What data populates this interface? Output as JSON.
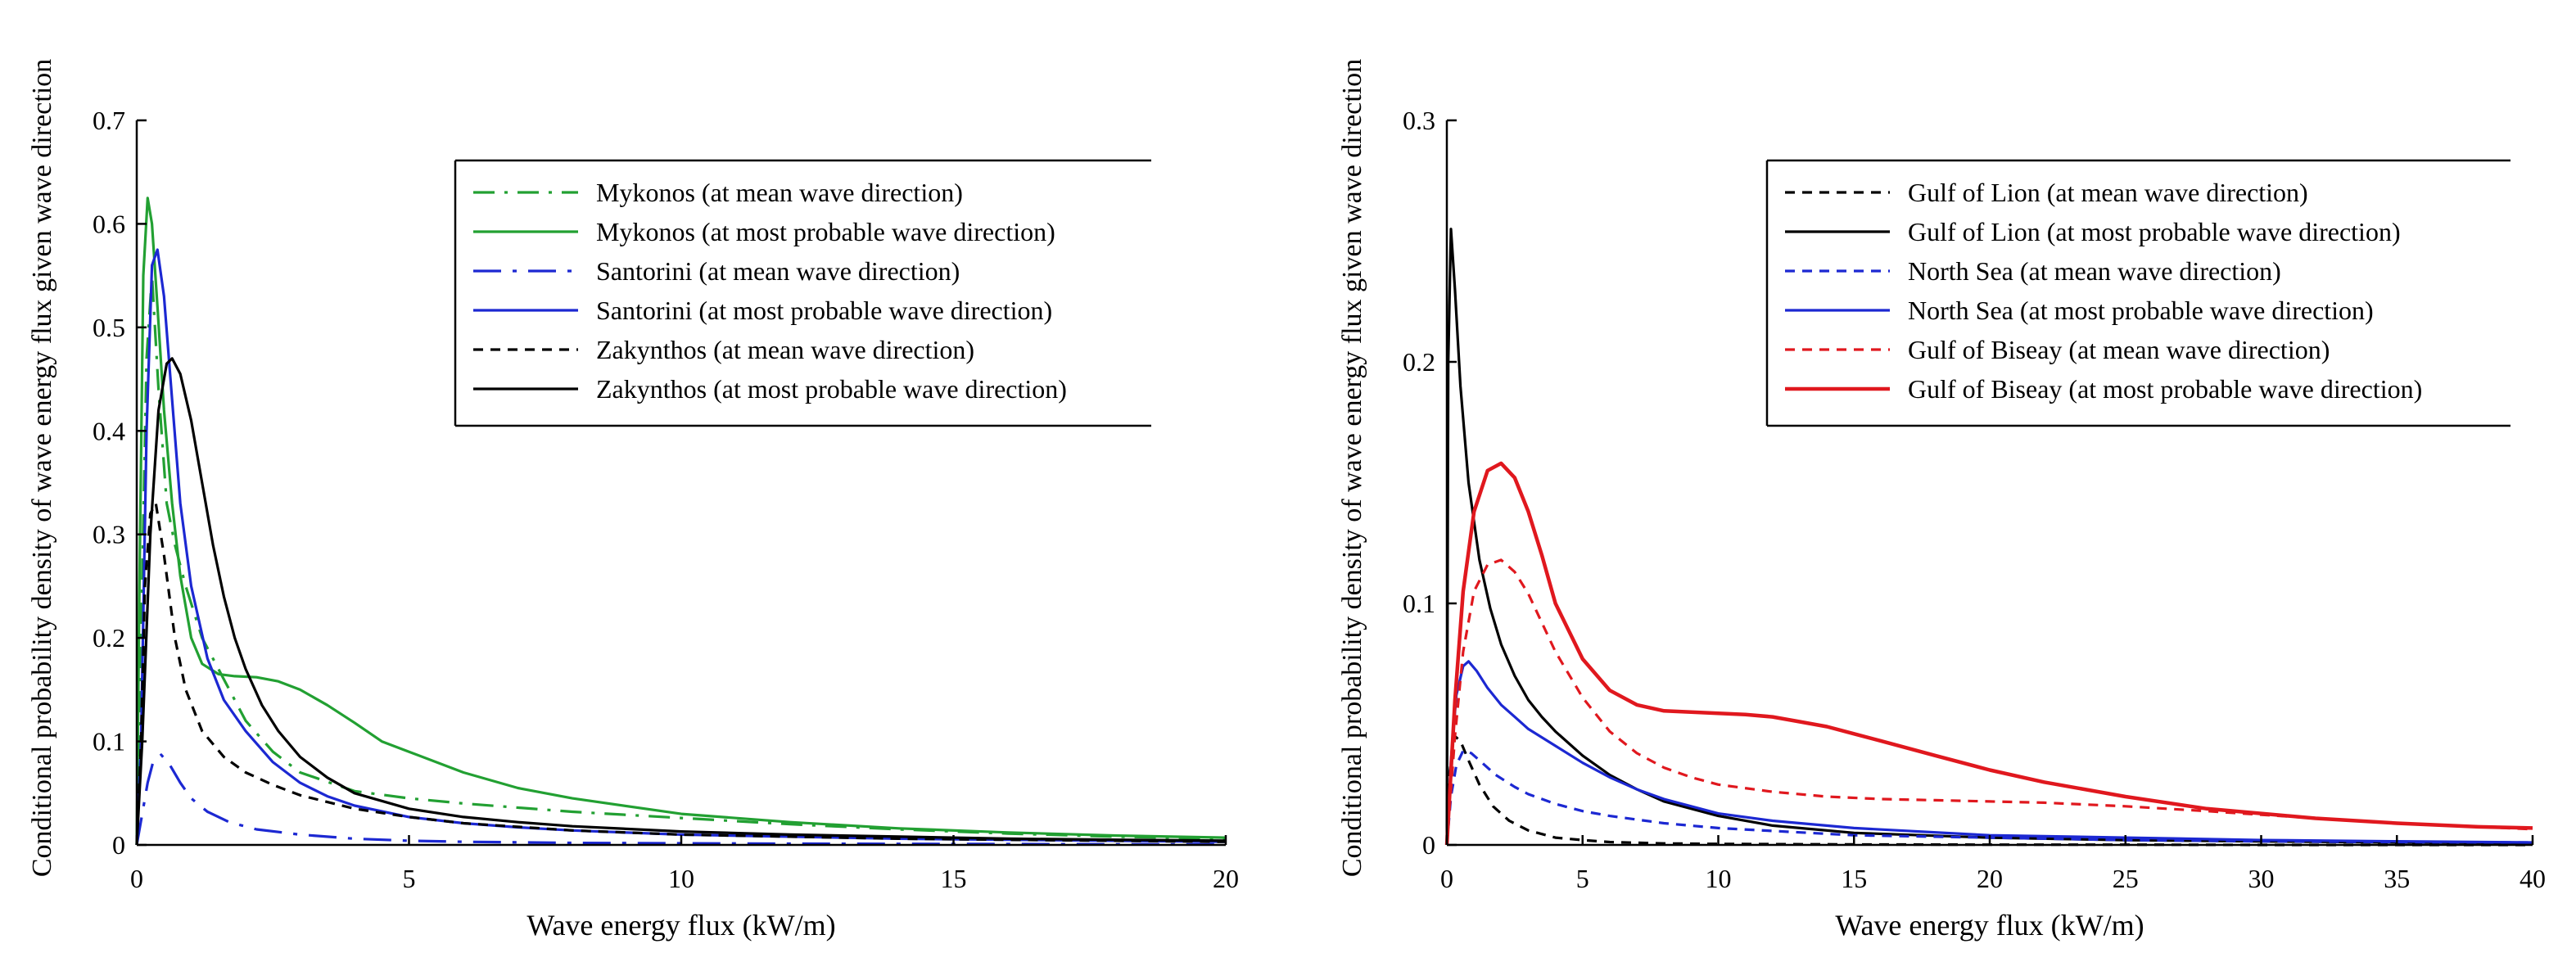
{
  "chart_data": [
    {
      "type": "line",
      "xlabel": "Wave energy flux (kW/m)",
      "ylabel": "Conditional probability density of wave energy flux given wave direction",
      "xlim": [
        0,
        20
      ],
      "ylim": [
        0,
        0.7
      ],
      "xticks": [
        0,
        5,
        10,
        15,
        20
      ],
      "xtick_labels": [
        "0",
        "5",
        "10",
        "15",
        "20"
      ],
      "yticks": [
        0,
        0.1,
        0.2,
        0.3,
        0.4,
        0.5,
        0.6,
        0.7
      ],
      "ytick_labels": [
        "0",
        "0.1",
        "0.2",
        "0.3",
        "0.4",
        "0.5",
        "0.6",
        "0.7"
      ],
      "grid": false,
      "legend_position": "top-right",
      "series": [
        {
          "name": "Mykonos (at mean wave direction)",
          "color": "#22a032",
          "dash": "dash-dot",
          "width": 3.2,
          "x": [
            0,
            0.08,
            0.18,
            0.28,
            0.4,
            0.55,
            0.7,
            0.9,
            1.2,
            1.6,
            2,
            2.5,
            3,
            4,
            5,
            6,
            8,
            10,
            12,
            14,
            16,
            18,
            20
          ],
          "y": [
            0,
            0.2,
            0.47,
            0.55,
            0.44,
            0.33,
            0.29,
            0.25,
            0.2,
            0.16,
            0.12,
            0.09,
            0.07,
            0.052,
            0.045,
            0.04,
            0.032,
            0.026,
            0.02,
            0.015,
            0.011,
            0.008,
            0.006
          ]
        },
        {
          "name": "Mykonos (at most probable wave direction)",
          "color": "#22a032",
          "dash": "solid",
          "width": 3.2,
          "x": [
            0,
            0.05,
            0.12,
            0.2,
            0.28,
            0.38,
            0.5,
            0.65,
            0.8,
            1,
            1.2,
            1.5,
            1.8,
            2.2,
            2.6,
            3,
            3.5,
            4,
            4.5,
            5,
            6,
            7,
            8,
            10,
            12,
            14,
            16,
            18,
            20
          ],
          "y": [
            0,
            0.25,
            0.55,
            0.625,
            0.6,
            0.52,
            0.42,
            0.33,
            0.26,
            0.2,
            0.175,
            0.165,
            0.163,
            0.162,
            0.158,
            0.15,
            0.135,
            0.118,
            0.1,
            0.09,
            0.07,
            0.055,
            0.045,
            0.03,
            0.022,
            0.016,
            0.012,
            0.009,
            0.007
          ]
        },
        {
          "name": "Santorini (at mean wave direction)",
          "color": "#1c28d2",
          "dash": "long-dash-dot",
          "width": 3.2,
          "x": [
            0,
            0.1,
            0.2,
            0.3,
            0.45,
            0.6,
            0.8,
            1,
            1.3,
            1.7,
            2.2,
            3,
            4,
            5,
            6,
            8,
            10,
            12,
            14,
            16,
            18,
            20
          ],
          "y": [
            0,
            0.03,
            0.06,
            0.08,
            0.087,
            0.078,
            0.06,
            0.045,
            0.032,
            0.022,
            0.015,
            0.01,
            0.006,
            0.004,
            0.003,
            0.002,
            0.0016,
            0.0012,
            0.001,
            0.0008,
            0.0006,
            0.0005
          ]
        },
        {
          "name": "Santorini (at most probable wave direction)",
          "color": "#1c28d2",
          "dash": "solid",
          "width": 3.2,
          "x": [
            0,
            0.08,
            0.18,
            0.28,
            0.38,
            0.5,
            0.65,
            0.8,
            1,
            1.3,
            1.6,
            2,
            2.5,
            3,
            3.5,
            4,
            5,
            6,
            7,
            8,
            10,
            12,
            14,
            16,
            18,
            20
          ],
          "y": [
            0,
            0.1,
            0.4,
            0.56,
            0.575,
            0.53,
            0.43,
            0.33,
            0.25,
            0.18,
            0.14,
            0.11,
            0.08,
            0.06,
            0.047,
            0.038,
            0.027,
            0.021,
            0.017,
            0.014,
            0.01,
            0.008,
            0.006,
            0.005,
            0.004,
            0.003
          ]
        },
        {
          "name": "Zakynthos (at mean wave direction)",
          "color": "#000000",
          "dash": "dashed",
          "width": 3.2,
          "x": [
            0,
            0.08,
            0.15,
            0.25,
            0.35,
            0.5,
            0.7,
            0.9,
            1.2,
            1.6,
            2,
            2.5,
            3,
            4,
            5,
            6,
            8,
            10,
            12,
            14,
            16,
            18,
            20
          ],
          "y": [
            0,
            0.1,
            0.25,
            0.32,
            0.33,
            0.28,
            0.2,
            0.15,
            0.11,
            0.085,
            0.07,
            0.058,
            0.048,
            0.035,
            0.027,
            0.021,
            0.014,
            0.01,
            0.008,
            0.006,
            0.005,
            0.004,
            0.003
          ]
        },
        {
          "name": "Zakynthos (at most probable wave direction)",
          "color": "#000000",
          "dash": "solid",
          "width": 3.2,
          "x": [
            0,
            0.1,
            0.25,
            0.4,
            0.55,
            0.65,
            0.8,
            1,
            1.2,
            1.4,
            1.6,
            1.8,
            2,
            2.3,
            2.6,
            3,
            3.5,
            4,
            5,
            6,
            7,
            8,
            10,
            12,
            14,
            16,
            18,
            20
          ],
          "y": [
            0,
            0.1,
            0.3,
            0.42,
            0.465,
            0.47,
            0.455,
            0.41,
            0.35,
            0.29,
            0.24,
            0.2,
            0.17,
            0.135,
            0.11,
            0.085,
            0.065,
            0.05,
            0.035,
            0.027,
            0.022,
            0.018,
            0.013,
            0.01,
            0.008,
            0.006,
            0.005,
            0.004
          ]
        }
      ]
    },
    {
      "type": "line",
      "xlabel": "Wave energy flux (kW/m)",
      "ylabel": "Conditional probability density of wave energy flux given wave direction",
      "xlim": [
        0,
        40
      ],
      "ylim": [
        0,
        0.3
      ],
      "xticks": [
        0,
        5,
        10,
        15,
        20,
        25,
        30,
        35,
        40
      ],
      "xtick_labels": [
        "0",
        "5",
        "10",
        "15",
        "20",
        "25",
        "30",
        "35",
        "40"
      ],
      "yticks": [
        0,
        0.1,
        0.2,
        0.3
      ],
      "ytick_labels": [
        "0",
        "0.1",
        "0.2",
        "0.3"
      ],
      "grid": false,
      "legend_position": "top-right",
      "series": [
        {
          "name": "Gulf of Lion (at mean wave direction)",
          "color": "#000000",
          "dash": "dashed",
          "width": 3.2,
          "x": [
            0,
            0.1,
            0.3,
            0.5,
            0.8,
            1.2,
            1.7,
            2.3,
            3,
            4,
            5,
            6,
            8,
            10,
            15,
            20,
            25,
            30,
            35,
            40
          ],
          "y": [
            0,
            0.03,
            0.045,
            0.043,
            0.035,
            0.025,
            0.016,
            0.01,
            0.006,
            0.003,
            0.002,
            0.0012,
            0.0006,
            0.0004,
            0.0002,
            0.0001,
            0.0001,
            0,
            0,
            0
          ]
        },
        {
          "name": "Gulf of Lion (at most probable wave direction)",
          "color": "#000000",
          "dash": "solid",
          "width": 3.2,
          "x": [
            0,
            0.05,
            0.15,
            0.3,
            0.5,
            0.8,
            1.2,
            1.6,
            2,
            2.5,
            3,
            3.5,
            4,
            5,
            6,
            7,
            8,
            10,
            12,
            15,
            20,
            25,
            30,
            35,
            40
          ],
          "y": [
            0,
            0.2,
            0.255,
            0.23,
            0.19,
            0.15,
            0.118,
            0.098,
            0.083,
            0.07,
            0.06,
            0.053,
            0.047,
            0.037,
            0.029,
            0.023,
            0.018,
            0.012,
            0.008,
            0.005,
            0.003,
            0.002,
            0.0015,
            0.001,
            0.0008
          ]
        },
        {
          "name": "North Sea (at mean wave direction)",
          "color": "#1c28d2",
          "dash": "dashed",
          "width": 3.2,
          "x": [
            0,
            0.15,
            0.35,
            0.6,
            0.9,
            1.3,
            1.8,
            2.5,
            3,
            4,
            5,
            6,
            8,
            10,
            15,
            20,
            25,
            30,
            35,
            40
          ],
          "y": [
            0,
            0.02,
            0.033,
            0.039,
            0.038,
            0.034,
            0.029,
            0.024,
            0.021,
            0.017,
            0.014,
            0.012,
            0.009,
            0.007,
            0.004,
            0.003,
            0.002,
            0.0015,
            0.0012,
            0.001
          ]
        },
        {
          "name": "North Sea (at most probable wave direction)",
          "color": "#1c28d2",
          "dash": "solid",
          "width": 3.2,
          "x": [
            0,
            0.15,
            0.35,
            0.6,
            0.8,
            1.1,
            1.5,
            2,
            2.5,
            3,
            4,
            5,
            6,
            7,
            8,
            10,
            12,
            15,
            20,
            25,
            30,
            35,
            40
          ],
          "y": [
            0,
            0.035,
            0.062,
            0.074,
            0.076,
            0.072,
            0.065,
            0.058,
            0.053,
            0.048,
            0.041,
            0.034,
            0.028,
            0.023,
            0.019,
            0.013,
            0.01,
            0.007,
            0.004,
            0.003,
            0.002,
            0.0015,
            0.001
          ]
        },
        {
          "name": "Gulf of Biseay (at mean wave direction)",
          "color": "#e0181e",
          "dash": "dashed",
          "width": 3.2,
          "x": [
            0,
            0.3,
            0.6,
            1,
            1.5,
            2,
            2.5,
            3,
            4,
            5,
            6,
            7,
            8,
            9,
            10,
            12,
            14,
            16,
            18,
            20,
            22,
            25,
            28,
            30,
            32,
            35,
            38,
            40
          ],
          "y": [
            0,
            0.045,
            0.08,
            0.105,
            0.116,
            0.118,
            0.113,
            0.104,
            0.08,
            0.061,
            0.047,
            0.038,
            0.032,
            0.028,
            0.025,
            0.022,
            0.02,
            0.019,
            0.0185,
            0.018,
            0.0175,
            0.016,
            0.014,
            0.0125,
            0.011,
            0.009,
            0.0075,
            0.0065
          ]
        },
        {
          "name": "Gulf of Biseay (at most probable wave direction)",
          "color": "#e0181e",
          "dash": "solid",
          "width": 4.5,
          "x": [
            0,
            0.3,
            0.6,
            1,
            1.5,
            2,
            2.5,
            3,
            3.5,
            4,
            5,
            6,
            7,
            8,
            9,
            10,
            11,
            12,
            13,
            14,
            15,
            16,
            18,
            20,
            22,
            25,
            28,
            30,
            32,
            35,
            38,
            40
          ],
          "y": [
            0,
            0.06,
            0.105,
            0.138,
            0.155,
            0.158,
            0.152,
            0.138,
            0.12,
            0.1,
            0.077,
            0.064,
            0.058,
            0.0555,
            0.055,
            0.0545,
            0.054,
            0.053,
            0.051,
            0.049,
            0.046,
            0.043,
            0.037,
            0.031,
            0.026,
            0.02,
            0.015,
            0.013,
            0.011,
            0.009,
            0.0075,
            0.007
          ]
        }
      ]
    }
  ]
}
